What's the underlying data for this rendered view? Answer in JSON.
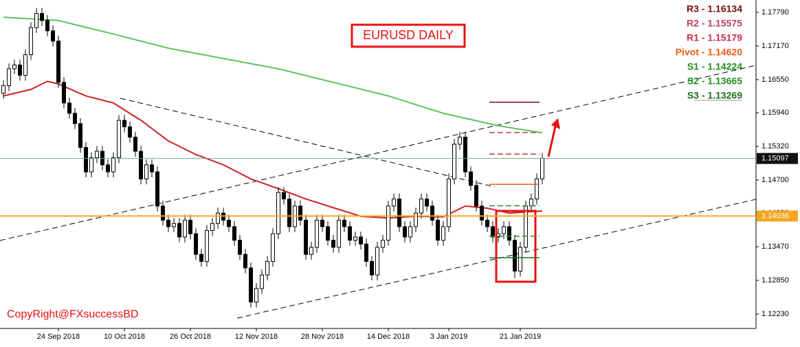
{
  "chart_data": {
    "type": "candlestick",
    "title": "EURUSD DAILY",
    "credit": "CopyRight@FXsuccessBD",
    "categories": [
      null,
      null,
      null,
      null,
      null,
      null,
      null,
      null,
      null,
      null,
      "24 Sep 2018",
      null,
      null,
      null,
      null,
      null,
      null,
      null,
      null,
      null,
      null,
      null,
      "10 Oct 2018",
      null,
      null,
      null,
      null,
      null,
      null,
      null,
      null,
      null,
      null,
      null,
      "26 Oct 2018",
      null,
      null,
      null,
      null,
      null,
      null,
      null,
      null,
      null,
      null,
      null,
      "12 Nov 2018",
      null,
      null,
      null,
      null,
      null,
      null,
      null,
      null,
      null,
      null,
      null,
      "28 Nov 2018",
      null,
      null,
      null,
      null,
      null,
      null,
      null,
      null,
      null,
      null,
      null,
      "14 Dec 2018",
      null,
      null,
      null,
      null,
      null,
      null,
      null,
      null,
      null,
      null,
      "3 Jan 2019",
      null,
      null,
      null,
      null,
      null,
      null,
      null,
      null,
      null,
      null,
      null,
      null,
      "21 Jan 2019",
      null,
      null,
      null,
      null
    ],
    "open": [
      1.163,
      1.1644,
      1.1675,
      1.1682,
      1.1663,
      1.1701,
      1.1751,
      1.1777,
      1.1764,
      1.1745,
      1.1726,
      1.165,
      1.1612,
      1.1593,
      1.1574,
      1.153,
      1.1485,
      1.1511,
      1.1523,
      1.1498,
      1.1485,
      1.1511,
      1.158,
      1.1568,
      1.1549,
      1.1523,
      1.1472,
      1.1498,
      1.1485,
      1.1422,
      1.1396,
      1.1384,
      1.139,
      1.1365,
      1.1396,
      1.1371,
      1.1333,
      1.132,
      1.1377,
      1.139,
      1.1409,
      1.1396,
      1.1384,
      1.1359,
      1.1333,
      1.1308,
      1.1245,
      1.127,
      1.1295,
      1.132,
      1.1371,
      1.1447,
      1.1435,
      1.1384,
      1.1422,
      1.1396,
      1.1333,
      1.1346,
      1.1396,
      1.1384,
      1.1359,
      1.1346,
      1.1396,
      1.1384,
      1.1359,
      1.1365,
      1.1352,
      1.132,
      1.1295,
      1.1346,
      1.1359,
      1.1422,
      1.1435,
      1.1384,
      1.1365,
      1.1384,
      1.1409,
      1.1435,
      1.1422,
      1.1396,
      1.1359,
      1.1384,
      1.1472,
      1.1536,
      1.1549,
      1.1485,
      1.146,
      1.1422,
      1.1396,
      1.1384,
      1.1365,
      1.1371,
      1.1384,
      1.1359,
      1.1302,
      1.1346,
      1.1422,
      1.1435,
      1.1472
    ],
    "high": [
      1.1654,
      1.1685,
      1.1692,
      1.1692,
      1.1711,
      1.1761,
      1.1787,
      1.1787,
      1.1774,
      1.1755,
      1.1736,
      1.166,
      1.1622,
      1.1603,
      1.1584,
      1.154,
      1.1521,
      1.1533,
      1.1533,
      1.1508,
      1.1521,
      1.159,
      1.159,
      1.1578,
      1.1559,
      1.1533,
      1.1508,
      1.1508,
      1.1495,
      1.1432,
      1.1406,
      1.14,
      1.14,
      1.1406,
      1.1406,
      1.1381,
      1.1343,
      1.1387,
      1.14,
      1.1419,
      1.1419,
      1.1406,
      1.1394,
      1.1369,
      1.1343,
      1.1318,
      1.128,
      1.1305,
      1.133,
      1.1381,
      1.1457,
      1.1457,
      1.1445,
      1.1432,
      1.1432,
      1.1406,
      1.1356,
      1.1406,
      1.1406,
      1.1394,
      1.1369,
      1.1406,
      1.1406,
      1.1394,
      1.1375,
      1.1375,
      1.1362,
      1.133,
      1.1356,
      1.1369,
      1.1432,
      1.1445,
      1.1445,
      1.1394,
      1.1394,
      1.1419,
      1.1445,
      1.1445,
      1.1432,
      1.1406,
      1.1394,
      1.1482,
      1.1546,
      1.1559,
      1.1559,
      1.1495,
      1.147,
      1.1432,
      1.1406,
      1.1394,
      1.1381,
      1.1394,
      1.1394,
      1.1369,
      1.1356,
      1.1432,
      1.1445,
      1.1482,
      1.152
    ],
    "low": [
      1.162,
      1.1634,
      1.1665,
      1.1653,
      1.1653,
      1.1691,
      1.1741,
      1.1754,
      1.1735,
      1.1716,
      1.164,
      1.1602,
      1.1583,
      1.1564,
      1.152,
      1.1475,
      1.1475,
      1.1501,
      1.1488,
      1.1475,
      1.1475,
      1.1501,
      1.1558,
      1.1539,
      1.1513,
      1.1462,
      1.1462,
      1.1475,
      1.1412,
      1.1386,
      1.1374,
      1.1374,
      1.1355,
      1.1355,
      1.1361,
      1.1323,
      1.131,
      1.131,
      1.1367,
      1.138,
      1.1386,
      1.1374,
      1.1349,
      1.1323,
      1.1298,
      1.1235,
      1.1235,
      1.126,
      1.1285,
      1.131,
      1.1361,
      1.1425,
      1.1374,
      1.1374,
      1.1386,
      1.1323,
      1.1323,
      1.1336,
      1.1374,
      1.1349,
      1.1336,
      1.1336,
      1.1374,
      1.1349,
      1.1349,
      1.1342,
      1.131,
      1.1285,
      1.1285,
      1.1336,
      1.1349,
      1.1412,
      1.1374,
      1.1355,
      1.1355,
      1.1374,
      1.1399,
      1.1412,
      1.1386,
      1.1349,
      1.1349,
      1.1374,
      1.1462,
      1.1526,
      1.1475,
      1.145,
      1.1412,
      1.1386,
      1.1374,
      1.1355,
      1.1355,
      1.1361,
      1.1349,
      1.1289,
      1.1292,
      1.1336,
      1.1412,
      1.1425,
      1.1462
    ],
    "close": [
      1.1644,
      1.1675,
      1.1682,
      1.1663,
      1.1701,
      1.1751,
      1.1777,
      1.1764,
      1.1745,
      1.1726,
      1.165,
      1.1612,
      1.1593,
      1.1574,
      1.153,
      1.1485,
      1.1511,
      1.1523,
      1.1498,
      1.1485,
      1.1511,
      1.158,
      1.1568,
      1.1549,
      1.1523,
      1.1472,
      1.1498,
      1.1485,
      1.1422,
      1.1396,
      1.1384,
      1.139,
      1.1365,
      1.1396,
      1.1371,
      1.1333,
      1.132,
      1.1377,
      1.139,
      1.1409,
      1.1396,
      1.1384,
      1.1359,
      1.1333,
      1.1308,
      1.1245,
      1.127,
      1.1295,
      1.132,
      1.1371,
      1.1447,
      1.1435,
      1.1384,
      1.1422,
      1.1396,
      1.1333,
      1.1346,
      1.1396,
      1.1384,
      1.1359,
      1.1346,
      1.1396,
      1.1384,
      1.1359,
      1.1365,
      1.1352,
      1.132,
      1.1295,
      1.1346,
      1.1359,
      1.1422,
      1.1435,
      1.1384,
      1.1365,
      1.1384,
      1.1409,
      1.1435,
      1.1422,
      1.1396,
      1.1359,
      1.1384,
      1.1472,
      1.1536,
      1.1549,
      1.1485,
      1.146,
      1.1422,
      1.1396,
      1.1384,
      1.1365,
      1.1371,
      1.1384,
      1.1359,
      1.1302,
      1.1346,
      1.1422,
      1.1435,
      1.1472,
      1.151
    ],
    "ylim": [
      1.11964,
      1.18018
    ],
    "yticks": [
      {
        "value": 1.1779,
        "label": "1.17790"
      },
      {
        "value": 1.1717,
        "label": "1.17170"
      },
      {
        "value": 1.1655,
        "label": "1.16550"
      },
      {
        "value": 1.1594,
        "label": "1.15940"
      },
      {
        "value": 1.1532,
        "label": "1.15320"
      },
      {
        "value": 1.147,
        "label": "1.14700"
      },
      {
        "value": 1.1409,
        "label": "1.14090"
      },
      {
        "value": 1.1347,
        "label": "1.13470"
      },
      {
        "value": 1.1285,
        "label": "1.12850"
      },
      {
        "value": 1.1223,
        "label": "1.12230"
      }
    ],
    "lines": [
      {
        "color": "#5cc45a",
        "x": [
          0,
          10,
          20,
          30,
          40,
          50,
          60,
          70,
          80,
          90,
          98
        ],
        "values": [
          1.177,
          1.1764,
          1.1739,
          1.1713,
          1.1694,
          1.1675,
          1.165,
          1.1625,
          1.1593,
          1.157,
          1.1557
        ]
      },
      {
        "color": "#cc2222",
        "x": [
          0,
          5,
          8,
          10,
          15,
          20,
          25,
          30,
          35,
          40,
          45,
          50,
          55,
          60,
          65,
          70,
          75,
          80,
          84,
          88,
          92,
          98
        ],
        "values": [
          1.1625,
          1.1637,
          1.1652,
          1.1647,
          1.1625,
          1.1612,
          1.158,
          1.1542,
          1.1517,
          1.1498,
          1.1472,
          1.1454,
          1.1435,
          1.1419,
          1.1403,
          1.14,
          1.1403,
          1.1402,
          1.1422,
          1.1418,
          1.1409,
          1.1413
        ]
      }
    ],
    "levels": [
      {
        "value": 1.15097,
        "color": "#7fa596",
        "box": "#111111"
      },
      {
        "value": 1.14036,
        "color": "#f5a623",
        "box": "#f5a623"
      }
    ],
    "pivots": [
      {
        "label": "R3 - 1.16134",
        "value": 1.16134,
        "color": "#7a0c0c",
        "dash": false
      },
      {
        "label": "R2 - 1.15575",
        "value": 1.15575,
        "color": "#c0405a",
        "dash": true
      },
      {
        "label": "R1 - 1.15179",
        "value": 1.15179,
        "color": "#c8304a",
        "dash": true
      },
      {
        "label": "Pivot - 1.14620",
        "value": 1.1462,
        "color": "#ee5a12",
        "dash": false
      },
      {
        "label": "S1 - 1.14224",
        "value": 1.14224,
        "color": "#1f8f1f",
        "dash": true
      },
      {
        "label": "S2 - 1.13665",
        "value": 1.13665,
        "color": "#1f8f1f",
        "dash": true
      },
      {
        "label": "S3 - 1.13269",
        "value": 1.13269,
        "color": "#1a6e1a",
        "dash": false
      }
    ]
  }
}
